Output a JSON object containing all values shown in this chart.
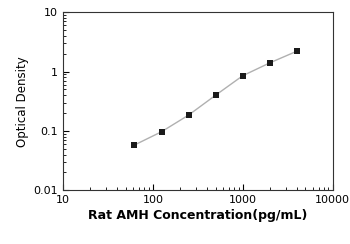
{
  "x_values": [
    62.5,
    125,
    250,
    500,
    1000,
    2000,
    4000
  ],
  "y_values": [
    0.058,
    0.097,
    0.185,
    0.4,
    0.85,
    1.4,
    2.2
  ],
  "xlim": [
    10,
    10000
  ],
  "ylim": [
    0.01,
    10
  ],
  "xlabel": "Rat AMH Concentration(pg/mL)",
  "ylabel": "Optical Density",
  "line_color": "#b0b0b0",
  "marker_color": "#1a1a1a",
  "marker": "s",
  "marker_size": 4.5,
  "line_width": 1.0,
  "xlabel_fontsize": 9,
  "ylabel_fontsize": 8.5,
  "tick_fontsize": 8,
  "background_color": "#ffffff",
  "xlabel_bold": true
}
